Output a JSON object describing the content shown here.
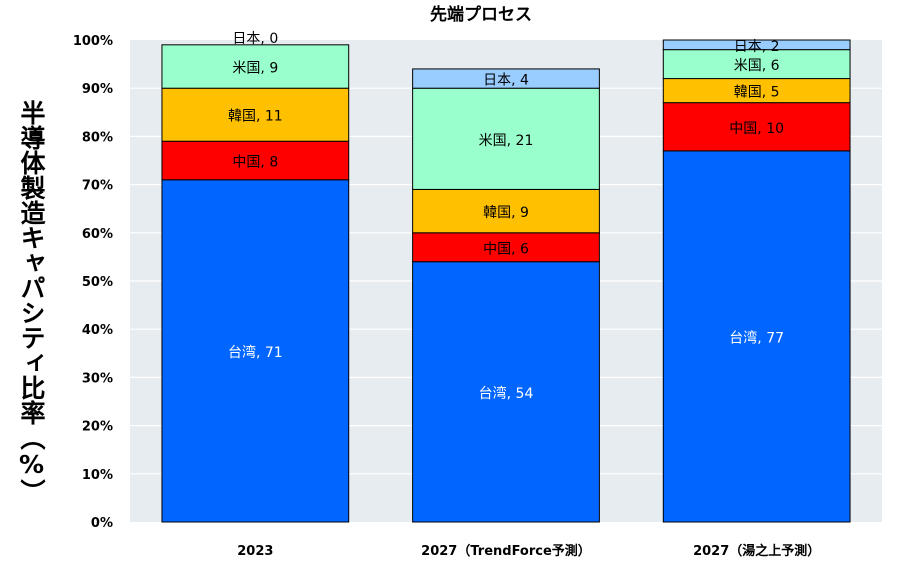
{
  "chart_data": {
    "type": "bar",
    "stacked": true,
    "title": "先端プロセス",
    "ylabel": "半導体製造キャパシティ比率（%）",
    "xlabel": "",
    "ylim": [
      0,
      100
    ],
    "yticks": [
      "0%",
      "10%",
      "20%",
      "30%",
      "40%",
      "50%",
      "60%",
      "70%",
      "80%",
      "90%",
      "100%"
    ],
    "grid": true,
    "categories": [
      "2023",
      "2027（TrendForce予測）",
      "2027（湯之上予測）"
    ],
    "series": [
      {
        "name": "台湾",
        "color": "#0066ff",
        "label_color": "#ffffff",
        "values": [
          71,
          54,
          77
        ],
        "labels": [
          "台湾, 71",
          "台湾, 54",
          "台湾, 77"
        ]
      },
      {
        "name": "中国",
        "color": "#ff0000",
        "label_color": "#000000",
        "values": [
          8,
          6,
          10
        ],
        "labels": [
          "中国, 8",
          "中国, 6",
          "中国, 10"
        ]
      },
      {
        "name": "韓国",
        "color": "#ffc000",
        "label_color": "#000000",
        "values": [
          11,
          9,
          5
        ],
        "labels": [
          "韓国, 11",
          "韓国, 9",
          "韓国, 5"
        ]
      },
      {
        "name": "米国",
        "color": "#99ffcc",
        "label_color": "#000000",
        "values": [
          9,
          21,
          6
        ],
        "labels": [
          "米国, 9",
          "米国, 21",
          "米国, 6"
        ]
      },
      {
        "name": "日本",
        "color": "#99ccff",
        "label_color": "#000000",
        "values": [
          0,
          4,
          2
        ],
        "labels": [
          "日本, 0",
          "日本, 4",
          "日本, 2"
        ]
      }
    ]
  }
}
